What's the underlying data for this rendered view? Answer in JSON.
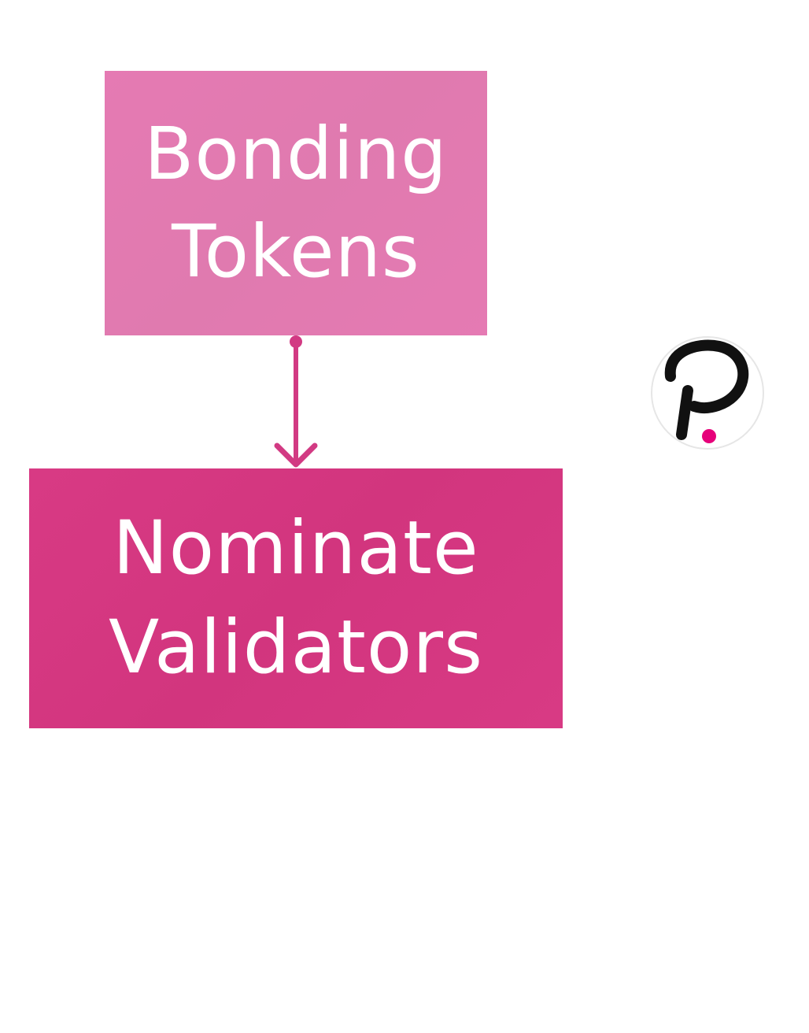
{
  "diagram": {
    "nodes": [
      {
        "id": "bonding",
        "lines": [
          "Bonding",
          "Tokens"
        ],
        "color": "#e57ab3"
      },
      {
        "id": "nominate",
        "lines": [
          "Nominate",
          "Validators"
        ],
        "color": "#d83a84"
      }
    ],
    "edges": [
      {
        "from": "bonding",
        "to": "nominate",
        "color": "#d23a83"
      }
    ]
  },
  "logo": {
    "icon": "polkadot-logo-icon",
    "dot_color": "#e6007a"
  }
}
